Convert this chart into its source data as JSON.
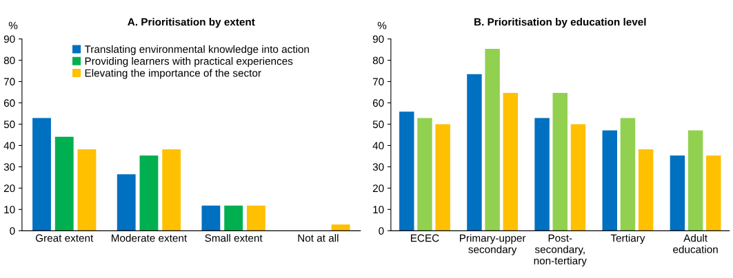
{
  "chart_data": [
    {
      "type": "bar",
      "title": "A. Prioritisation by extent",
      "ylabel": "%",
      "categories": [
        "Great extent",
        "Moderate extent",
        "Small extent",
        "Not at all"
      ],
      "series": [
        {
          "name": "Translating environmental knowledge into action",
          "color": "#0070c0",
          "values": [
            52.9,
            26.5,
            11.8,
            0
          ]
        },
        {
          "name": "Providing learners with practical experiences",
          "color": "#00b050",
          "values": [
            44.1,
            35.3,
            11.8,
            0
          ]
        },
        {
          "name": "Elevating the importance of the sector",
          "color": "#ffc000",
          "values": [
            38.2,
            38.2,
            11.8,
            2.9
          ]
        }
      ],
      "ylim": [
        0,
        90
      ],
      "yticks": [
        0,
        10,
        20,
        30,
        40,
        50,
        60,
        70,
        80,
        90
      ],
      "legend": "top",
      "grid": false
    },
    {
      "type": "bar",
      "title": "B. Prioritisation by education level",
      "ylabel": "%",
      "categories": [
        "ECEC",
        "Primary-upper\nsecondary",
        "Post-\nsecondary,\nnon-tertiary",
        "Tertiary",
        "Adult\neducation"
      ],
      "series": [
        {
          "color": "#0070c0",
          "values": [
            55.9,
            73.5,
            52.9,
            47.1,
            35.3
          ]
        },
        {
          "color": "#92d050",
          "values": [
            52.9,
            85.3,
            64.7,
            52.9,
            47.1
          ]
        },
        {
          "color": "#ffc000",
          "values": [
            50.0,
            64.7,
            50.0,
            38.2,
            35.3
          ]
        }
      ],
      "ylim": [
        0,
        90
      ],
      "yticks": [
        0,
        10,
        20,
        30,
        40,
        50,
        60,
        70,
        80,
        90
      ],
      "grid": false
    }
  ]
}
